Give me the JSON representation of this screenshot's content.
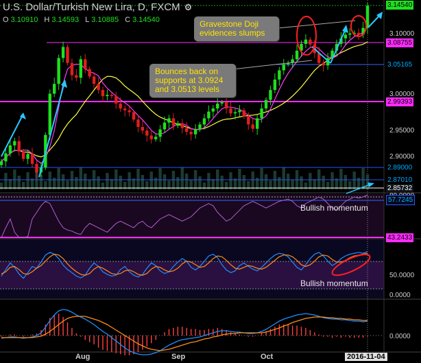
{
  "header": {
    "title": "U.S. Dollar/Turkish New Lira, D, FXCM",
    "ohlc": [
      {
        "key": "O",
        "value": "3.10910"
      },
      {
        "key": "H",
        "value": "3.14593"
      },
      {
        "key": "L",
        "value": "3.10885"
      },
      {
        "key": "C",
        "value": "3.14540"
      }
    ]
  },
  "annotations": {
    "doji": "Gravestone Doji evidences slumps",
    "supports": "Bounces back on supports at 3.0924 and 3.0513 levels",
    "momentum_rsi": "Bullish momentum",
    "momentum_stoch": "Bullish momentum"
  },
  "price_labels": {
    "last": "3.14540",
    "p3100": "3.10000",
    "p30875": "3.08755",
    "p30516": "3.05165",
    "p30000": "3.00000",
    "p29939": "2.99393",
    "p29500": "2.95000",
    "p29000": "2.90000",
    "p28900": "2.89000",
    "p28701": "2.87010",
    "p28573": "2.85732"
  },
  "rsi_labels": {
    "top": "80.0000",
    "mid": "57.7245",
    "low": "43.2433"
  },
  "stoch_labels": {
    "mid": "50.0000",
    "low": "0.0000"
  },
  "macd_labels": {
    "zero": "0.0000"
  },
  "x_axis": {
    "aug": "Aug",
    "sep": "Sep",
    "oct": "Oct",
    "date": "2016-11-04"
  },
  "colors": {
    "up": "#1ee01e",
    "down": "#e01e1e",
    "ma_fast": "#ff3cff",
    "ma_slow": "#ffff40",
    "support": "#ff2bff",
    "arrow": "#28c8ff",
    "macd": "#1f8fff",
    "signal": "#ff8c1a",
    "hist": "#ff4040",
    "stoch_k": "#1f8fff",
    "stoch_d": "#ff8c1a"
  },
  "chart_data": [
    {
      "type": "candlestick",
      "title": "U.S. Dollar/Turkish New Lira, D, FXCM",
      "xlabel": "",
      "ylabel": "",
      "x_ticks": [
        "Aug",
        "Sep",
        "Oct",
        "2016-11-04"
      ],
      "ylim": [
        2.857,
        3.152
      ],
      "levels": [
        3.1454,
        3.1,
        3.08755,
        3.05165,
        3.0,
        2.99393,
        2.95,
        2.9,
        2.89,
        2.8701,
        2.85732
      ],
      "support_levels": [
        3.0924,
        3.0513
      ],
      "close": [
        2.892,
        2.905,
        2.918,
        2.925,
        2.908,
        2.896,
        2.904,
        2.888,
        2.874,
        2.882,
        2.935,
        3.002,
        3.018,
        3.06,
        3.078,
        3.052,
        3.032,
        3.028,
        3.058,
        3.042,
        3.03,
        3.018,
        3.008,
        2.998,
        3.0,
        2.998,
        2.986,
        2.978,
        2.975,
        2.972,
        2.96,
        2.948,
        2.942,
        2.934,
        2.928,
        2.932,
        2.944,
        2.955,
        2.962,
        2.95,
        2.954,
        2.946,
        2.94,
        2.936,
        2.944,
        2.952,
        2.962,
        2.973,
        2.978,
        2.986,
        2.988,
        2.978,
        2.97,
        2.972,
        2.975,
        2.965,
        2.952,
        2.945,
        2.962,
        2.978,
        2.992,
        3.008,
        3.025,
        3.04,
        3.05,
        3.052,
        3.058,
        3.072,
        3.083,
        3.09,
        3.082,
        3.068,
        3.052,
        3.048,
        3.06,
        3.072,
        3.083,
        3.092,
        3.098,
        3.1,
        3.101,
        3.098,
        3.109,
        3.145
      ]
    },
    {
      "type": "line",
      "title": "",
      "levels": [
        80.0,
        57.7245,
        43.2433
      ],
      "ylim": [
        20,
        85
      ],
      "series": [
        {
          "values": [
            40,
            52,
            60,
            48,
            40,
            34,
            44,
            60,
            66,
            72,
            76,
            74,
            66,
            58,
            52,
            50,
            49,
            47,
            46,
            52,
            56,
            54,
            52,
            50,
            48,
            52,
            56,
            58,
            56,
            54,
            52,
            56,
            58,
            54,
            52,
            56,
            60,
            62,
            64,
            62,
            60,
            58,
            60,
            62,
            66,
            70,
            72,
            74,
            72,
            66,
            62,
            58,
            60,
            64,
            68,
            72,
            74,
            76,
            74,
            72,
            70,
            72,
            74,
            76,
            77,
            78,
            76,
            72,
            70,
            74,
            76,
            78,
            80,
            78,
            74,
            70,
            68,
            72,
            76,
            78,
            80,
            79,
            80,
            82
          ]
        }
      ]
    },
    {
      "type": "line",
      "title": "",
      "levels": [
        50.0,
        0.0
      ],
      "ylim": [
        0,
        100
      ],
      "series": [
        {
          "values": [
            40,
            55,
            70,
            60,
            45,
            35,
            48,
            62,
            58,
            72,
            88,
            94,
            90,
            80,
            65,
            55,
            48,
            40,
            36,
            42,
            58,
            70,
            62,
            50,
            44,
            40,
            42,
            55,
            62,
            50,
            42,
            38,
            44,
            58,
            70,
            64,
            52,
            46,
            50,
            62,
            72,
            80,
            74,
            60,
            54,
            62,
            74,
            86,
            90,
            82,
            66,
            54,
            48,
            52,
            64,
            70,
            62,
            56,
            52,
            60,
            70,
            80,
            88,
            92,
            90,
            84,
            72,
            60,
            54,
            66,
            80,
            90,
            94,
            86,
            74,
            64,
            70,
            80,
            86,
            90,
            92,
            94,
            92,
            96
          ]
        },
        {
          "values": [
            45,
            50,
            60,
            62,
            55,
            46,
            44,
            50,
            58,
            64,
            74,
            84,
            90,
            88,
            80,
            68,
            58,
            50,
            44,
            42,
            46,
            56,
            62,
            58,
            52,
            46,
            44,
            46,
            52,
            54,
            50,
            44,
            42,
            46,
            56,
            62,
            60,
            54,
            50,
            52,
            58,
            68,
            74,
            72,
            66,
            60,
            62,
            70,
            80,
            86,
            84,
            76,
            66,
            58,
            56,
            60,
            64,
            62,
            58,
            56,
            60,
            68,
            76,
            84,
            88,
            88,
            84,
            76,
            66,
            62,
            66,
            74,
            84,
            88,
            86,
            78,
            72,
            72,
            76,
            82,
            86,
            88,
            90,
            92
          ]
        }
      ]
    },
    {
      "type": "line",
      "title": "",
      "levels": [
        0.0
      ],
      "ylim": [
        -0.04,
        0.045
      ],
      "series": [
        {
          "values": [
            -0.004,
            -0.003,
            -0.002,
            -0.002,
            -0.003,
            -0.004,
            -0.003,
            -0.002,
            0.0,
            0.004,
            0.012,
            0.022,
            0.03,
            0.036,
            0.038,
            0.037,
            0.034,
            0.03,
            0.027,
            0.024,
            0.02,
            0.016,
            0.011,
            0.006,
            0.002,
            -0.003,
            -0.008,
            -0.013,
            -0.018,
            -0.022,
            -0.025,
            -0.027,
            -0.028,
            -0.028,
            -0.027,
            -0.025,
            -0.022,
            -0.018,
            -0.014,
            -0.011,
            -0.008,
            -0.006,
            -0.005,
            -0.004,
            -0.003,
            -0.002,
            0.0,
            0.002,
            0.004,
            0.006,
            0.007,
            0.007,
            0.006,
            0.005,
            0.005,
            0.004,
            0.003,
            0.003,
            0.004,
            0.006,
            0.009,
            0.013,
            0.017,
            0.021,
            0.024,
            0.026,
            0.028,
            0.03,
            0.031,
            0.032,
            0.031,
            0.03,
            0.028,
            0.026,
            0.025,
            0.024,
            0.024,
            0.023,
            0.023,
            0.022,
            0.021,
            0.021,
            0.02,
            0.021
          ]
        },
        {
          "values": [
            -0.003,
            -0.003,
            -0.003,
            -0.003,
            -0.003,
            -0.003,
            -0.003,
            -0.003,
            -0.002,
            -0.001,
            0.002,
            0.006,
            0.011,
            0.016,
            0.021,
            0.025,
            0.027,
            0.028,
            0.028,
            0.028,
            0.026,
            0.024,
            0.022,
            0.019,
            0.016,
            0.012,
            0.008,
            0.004,
            0.0,
            -0.004,
            -0.008,
            -0.012,
            -0.015,
            -0.018,
            -0.02,
            -0.021,
            -0.022,
            -0.021,
            -0.02,
            -0.018,
            -0.016,
            -0.014,
            -0.012,
            -0.01,
            -0.009,
            -0.007,
            -0.005,
            -0.004,
            -0.002,
            -0.001,
            0.001,
            0.002,
            0.003,
            0.003,
            0.004,
            0.004,
            0.004,
            0.004,
            0.004,
            0.004,
            0.005,
            0.007,
            0.009,
            0.011,
            0.014,
            0.016,
            0.019,
            0.021,
            0.023,
            0.025,
            0.026,
            0.027,
            0.027,
            0.027,
            0.026,
            0.026,
            0.025,
            0.025,
            0.024,
            0.024,
            0.023,
            0.023,
            0.022,
            0.022
          ]
        }
      ]
    }
  ]
}
